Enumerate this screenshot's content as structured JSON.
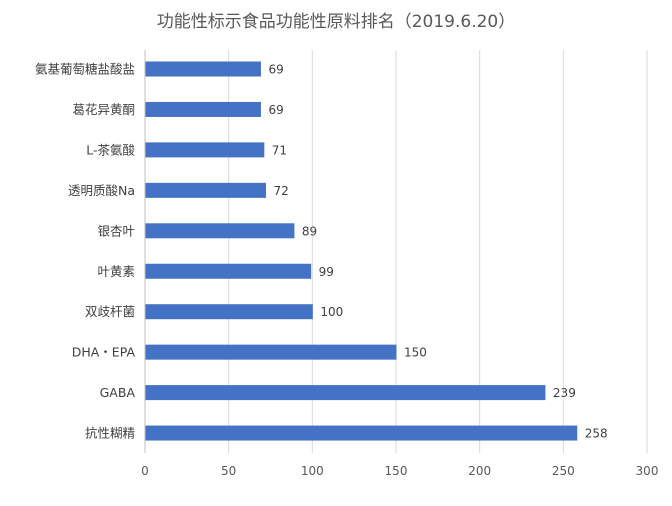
{
  "chart_data": {
    "type": "bar",
    "orientation": "horizontal",
    "title": "功能性标示食品功能性原料排名（2019.6.20）",
    "categories": [
      "氨基葡萄糖盐酸盐",
      "葛花异黄酮",
      "L-茶氨酸",
      "透明质酸Na",
      "银杏叶",
      "叶黄素",
      "双歧杆菌",
      "DHA・EPA",
      "GABA",
      "抗性糊精"
    ],
    "values": [
      69,
      69,
      71,
      72,
      89,
      99,
      100,
      150,
      239,
      258
    ],
    "xlim": [
      0,
      300
    ],
    "xticks": [
      0,
      50,
      100,
      150,
      200,
      250,
      300
    ],
    "grid": true,
    "bar_color": "#4472C4",
    "data_labels": true
  }
}
